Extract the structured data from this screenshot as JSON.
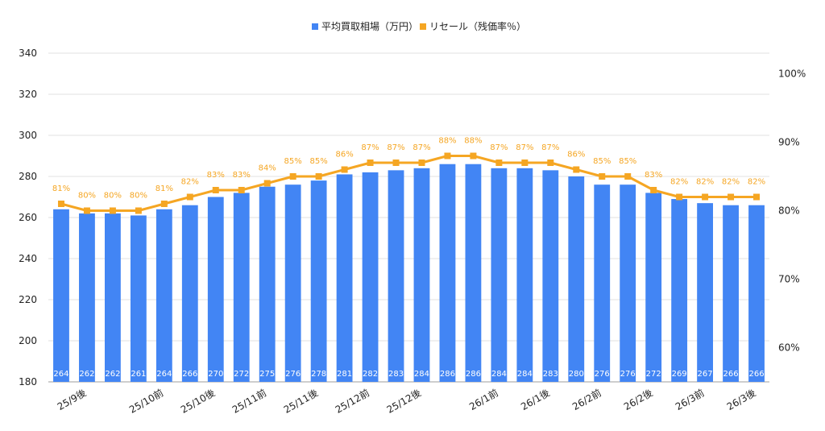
{
  "chart_data": {
    "type": "bar",
    "title": "",
    "xlabel": "",
    "ylabel": "",
    "categories": [
      "",
      "25/9後",
      "",
      "",
      "25/10前",
      "",
      "25/10後",
      "",
      "25/11前",
      "",
      "25/11後",
      "",
      "25/12前",
      "",
      "25/12後",
      "",
      "",
      "26/1前",
      "",
      "26/1後",
      "",
      "26/2前",
      "",
      "26/2後",
      "",
      "26/3前",
      "",
      "26/3後"
    ],
    "series": [
      {
        "name": "平均買取相場（万円）",
        "chart": "bar",
        "axis": "left",
        "color": "#4285f4",
        "values": [
          264,
          262,
          262,
          261,
          264,
          266,
          270,
          272,
          275,
          276,
          278,
          281,
          282,
          283,
          284,
          286,
          286,
          284,
          284,
          283,
          280,
          276,
          276,
          272,
          269,
          267,
          266,
          266
        ],
        "labels": [
          "264",
          "262",
          "262",
          "261",
          "264",
          "266",
          "270",
          "272",
          "275",
          "276",
          "278",
          "281",
          "282",
          "283",
          "284",
          "286",
          "286",
          "284",
          "284",
          "283",
          "280",
          "276",
          "276",
          "272",
          "269",
          "267",
          "266",
          "266"
        ]
      },
      {
        "name": "リセール（残価率％）",
        "chart": "line",
        "axis": "right",
        "color": "#f5a623",
        "values": [
          81,
          80,
          80,
          80,
          81,
          82,
          83,
          83,
          84,
          85,
          85,
          86,
          87,
          87,
          87,
          88,
          88,
          87,
          87,
          87,
          86,
          85,
          85,
          83,
          82,
          82,
          82,
          82
        ],
        "labels": [
          "81%",
          "80%",
          "80%",
          "80%",
          "81%",
          "82%",
          "83%",
          "83%",
          "84%",
          "85%",
          "85%",
          "86%",
          "87%",
          "87%",
          "87%",
          "88%",
          "88%",
          "87%",
          "87%",
          "87%",
          "86%",
          "85%",
          "85%",
          "83%",
          "82%",
          "82%",
          "82%",
          "82%"
        ]
      }
    ],
    "y_left": {
      "ylim": [
        180,
        340
      ],
      "ticks": [
        180,
        200,
        220,
        240,
        260,
        280,
        300,
        320,
        340
      ],
      "tick_labels": [
        "180",
        "200",
        "220",
        "240",
        "260",
        "280",
        "300",
        "320",
        "340"
      ]
    },
    "y_right": {
      "ylim": [
        55,
        103
      ],
      "ticks": [
        60,
        70,
        80,
        90,
        100
      ],
      "tick_labels": [
        "60%",
        "70%",
        "80%",
        "90%",
        "100%"
      ]
    },
    "grid": true,
    "legend": "top-center"
  }
}
